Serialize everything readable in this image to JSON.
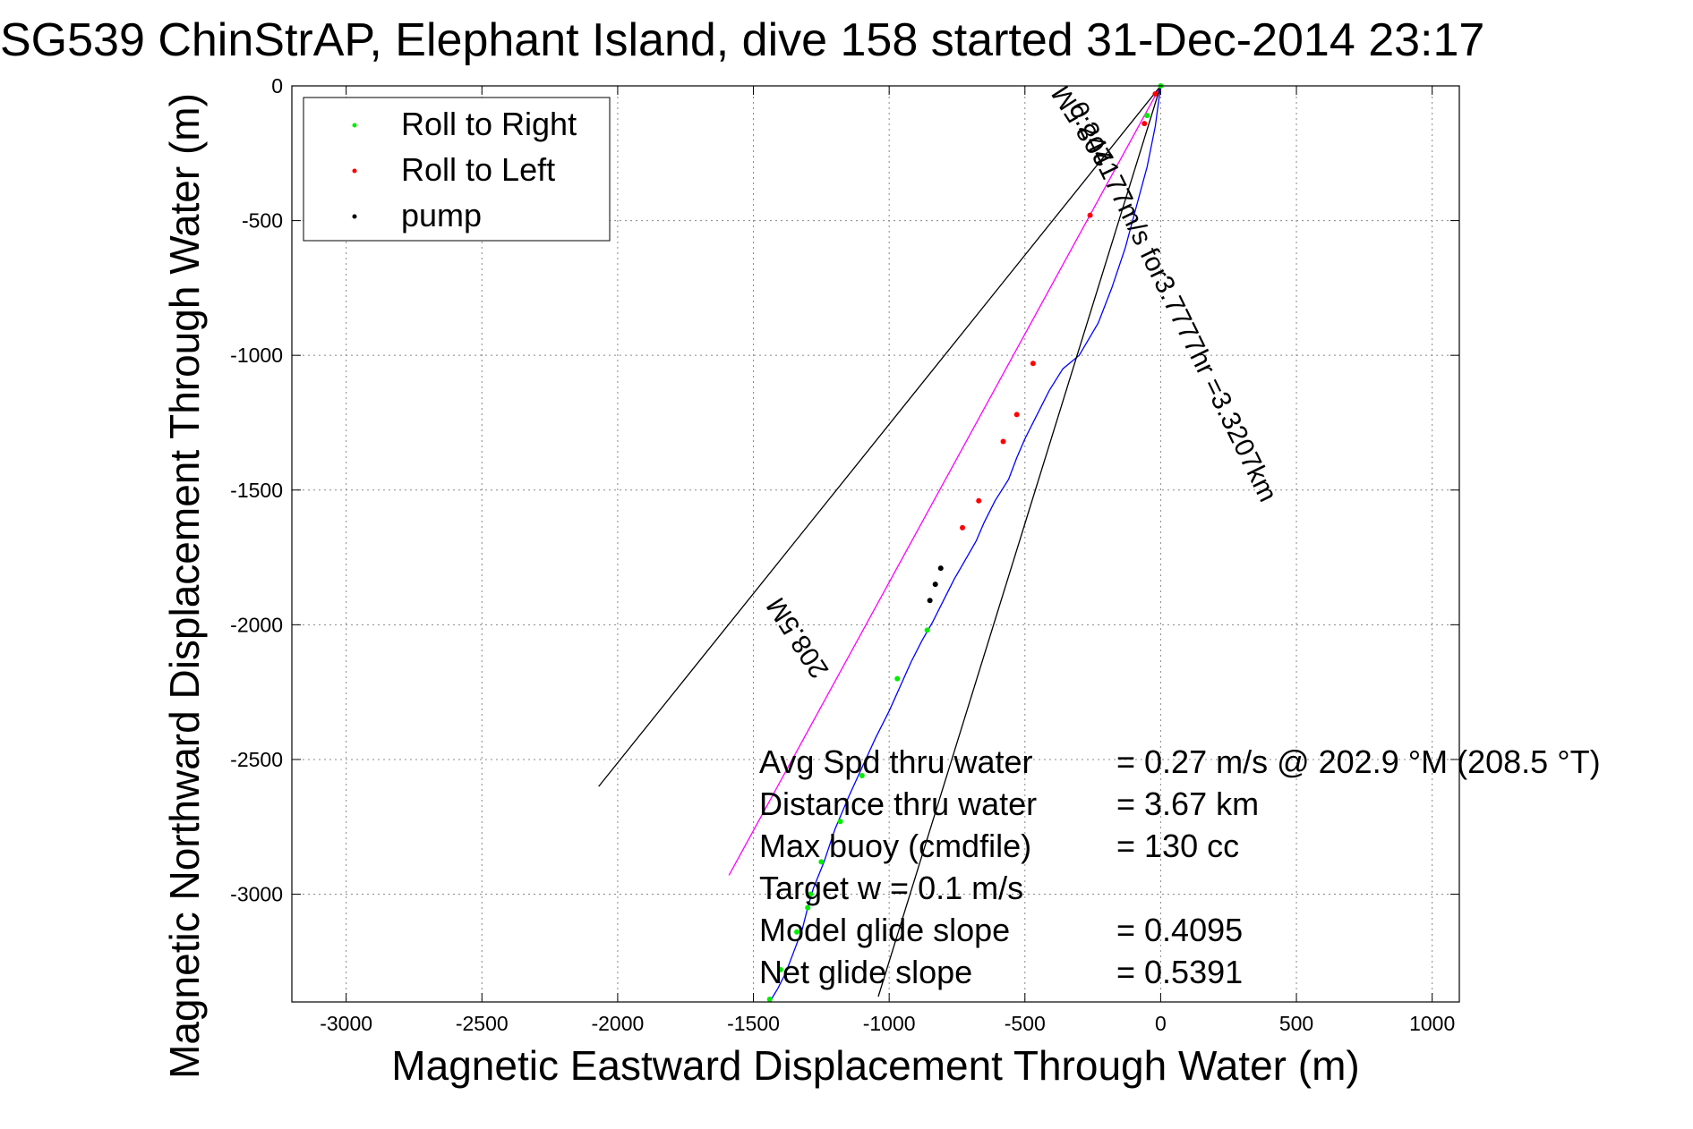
{
  "chart_data": {
    "type": "scatter",
    "title": "SG539 ChinStrAP, Elephant Island, dive 158 started 31-Dec-2014 23:17",
    "xlabel": "Magnetic Eastward Displacement Through Water (m)",
    "ylabel": "Magnetic Northward Displacement Through Water (m)",
    "xlim": [
      -3200,
      1100
    ],
    "ylim": [
      -3400,
      0
    ],
    "xticks": [
      -3000,
      -2500,
      -2000,
      -1500,
      -1000,
      -500,
      0,
      500,
      1000
    ],
    "yticks": [
      0,
      -500,
      -1000,
      -1500,
      -2000,
      -2500,
      -3000
    ],
    "grid": true,
    "legend": {
      "position": "top-left",
      "entries": [
        {
          "label": "Roll to Right",
          "color": "#00ee00",
          "marker": "dot"
        },
        {
          "label": "Roll to Left",
          "color": "#ff0000",
          "marker": "dot"
        },
        {
          "label": "pump",
          "color": "#000000",
          "marker": "dot"
        }
      ]
    },
    "series": [
      {
        "kind": "line",
        "color": "#0000ff",
        "x": [
          0,
          -20,
          -50,
          -90,
          -130,
          -180,
          -230,
          -300,
          -360,
          -410,
          -460,
          -500,
          -530,
          -560,
          -610,
          -650,
          -680,
          -720,
          -760,
          -800,
          -840,
          -880,
          -920,
          -960,
          -1000,
          -1050,
          -1100,
          -1150,
          -1200,
          -1240,
          -1280,
          -1300,
          -1320,
          -1350,
          -1380,
          -1410,
          -1440
        ],
        "y": [
          0,
          -150,
          -300,
          -450,
          -600,
          -750,
          -880,
          -1000,
          -1050,
          -1130,
          -1230,
          -1310,
          -1380,
          -1460,
          -1540,
          -1620,
          -1690,
          -1760,
          -1830,
          -1910,
          -1990,
          -2060,
          -2140,
          -2230,
          -2320,
          -2420,
          -2530,
          -2640,
          -2760,
          -2880,
          -2980,
          -3050,
          -3130,
          -3210,
          -3290,
          -3350,
          -3400
        ]
      },
      {
        "kind": "line",
        "color": "#ff00ff",
        "x": [
          0,
          -1590
        ],
        "y": [
          0,
          -2930
        ]
      },
      {
        "kind": "line",
        "color": "#000000",
        "x": [
          0,
          -2070
        ],
        "y": [
          0,
          -2600
        ]
      },
      {
        "kind": "line",
        "color": "#000000",
        "x": [
          0,
          -1040
        ],
        "y": [
          0,
          -3380
        ]
      },
      {
        "name": "Roll to Right",
        "kind": "points",
        "color": "#00ee00",
        "x": [
          0,
          -50,
          -860,
          -970,
          -1100,
          -1180,
          -1250,
          -1290,
          -1300,
          -1340,
          -1400,
          -1440
        ],
        "y": [
          0,
          -110,
          -2020,
          -2200,
          -2560,
          -2730,
          -2880,
          -3000,
          -3050,
          -3140,
          -3280,
          -3390
        ]
      },
      {
        "name": "Roll to Left",
        "kind": "points",
        "color": "#ff0000",
        "x": [
          -20,
          -60,
          -260,
          -470,
          -530,
          -580,
          -670,
          -730
        ],
        "y": [
          -30,
          -140,
          -480,
          -1030,
          -1220,
          -1320,
          -1540,
          -1640
        ]
      },
      {
        "name": "pump",
        "kind": "points",
        "color": "#000000",
        "x": [
          -810,
          -830,
          -850
        ],
        "y": [
          -1790,
          -1850,
          -1910
        ]
      }
    ],
    "annotations": [
      {
        "text": "0.244177m/s for3.7777hr =3.3207km",
        "x": -340,
        "y": -80,
        "angle": 64
      },
      {
        "text": "208.5M",
        "x": -170,
        "y": -270,
        "angle": -123
      },
      {
        "text": "208.5M",
        "x": -1220,
        "y": -2170,
        "angle": -123
      }
    ],
    "stats": [
      {
        "label": "Avg Spd thru water",
        "value": "=  0.27 m/s @ 202.9 °M (208.5 °T)"
      },
      {
        "label": "Distance thru water",
        "value": "=  3.67 km"
      },
      {
        "label": "Max buoy (cmdfile)",
        "value": "= 130 cc"
      },
      {
        "label": "Target w    = 0.1 m/s",
        "value": ""
      },
      {
        "label": "Model glide slope",
        "value": "= 0.4095"
      },
      {
        "label": "Net glide slope",
        "value": "= 0.5391"
      }
    ]
  }
}
